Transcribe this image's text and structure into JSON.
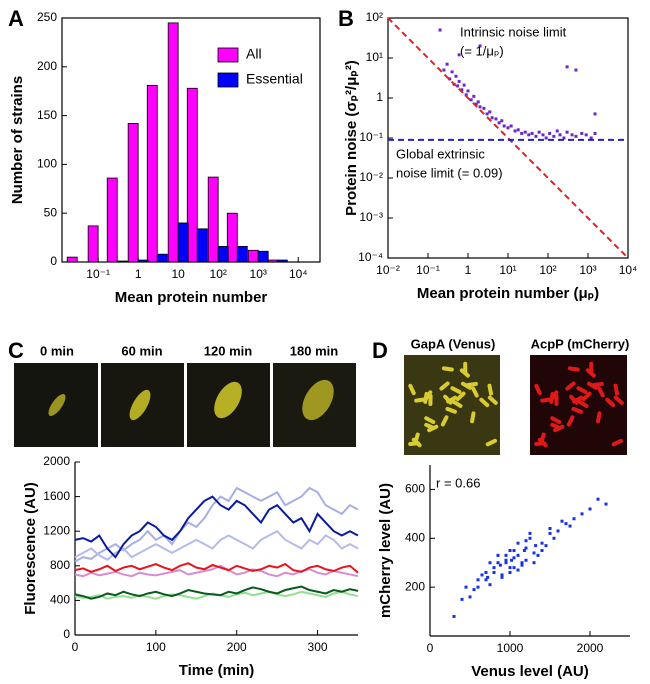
{
  "chart_data": [
    {
      "type": "bar",
      "panel": "A",
      "xlabel": "Mean protein number",
      "ylabel": "Number of strains",
      "xlog": true,
      "xlim": [
        0.0125,
        35000
      ],
      "ylim": [
        0,
        250
      ],
      "xticks": [
        {
          "value": 0.1,
          "label": "10⁻¹"
        },
        1,
        10,
        {
          "value": 100,
          "label": "10²"
        },
        {
          "value": 1000,
          "label": "10³"
        },
        {
          "value": 10000,
          "label": "10⁴"
        }
      ],
      "yticks": [
        0,
        50,
        100,
        150,
        200,
        250
      ],
      "x": [
        0.03,
        0.1,
        0.3,
        1,
        3,
        10,
        30,
        100,
        300,
        1000,
        3000
      ],
      "series": [
        {
          "name": "All",
          "color": "#ff00ff",
          "values": [
            5,
            37,
            86,
            142,
            181,
            245,
            178,
            87,
            50,
            12,
            2
          ]
        },
        {
          "name": "Essential",
          "color": "#0000ff",
          "values": [
            0,
            0,
            1,
            2,
            8,
            40,
            34,
            16,
            16,
            11,
            2
          ]
        }
      ],
      "legend": "upper right"
    },
    {
      "type": "scatter",
      "panel": "B",
      "xlabel": "Mean protein number (μₚ)",
      "ylabel": "Protein noise (σₚ²/μₚ²)",
      "xlog": true,
      "ylog": true,
      "xlim": [
        0.01,
        10000
      ],
      "ylim": [
        0.0001,
        100
      ],
      "xticks": [
        {
          "value": 0.01,
          "label": "10⁻²"
        },
        {
          "value": 0.1,
          "label": "10⁻¹"
        },
        1,
        {
          "value": 10,
          "label": "10¹"
        },
        {
          "value": 100,
          "label": "10²"
        },
        {
          "value": 1000,
          "label": "10³"
        },
        {
          "value": 10000,
          "label": "10⁴"
        }
      ],
      "yticks": [
        {
          "value": 0.0001,
          "label": "10⁻⁴"
        },
        {
          "value": 0.001,
          "label": "10⁻³"
        },
        {
          "value": 0.01,
          "label": "10⁻²"
        },
        {
          "value": 0.1,
          "label": "10⁻¹"
        },
        1,
        {
          "value": 10,
          "label": "10¹"
        },
        {
          "value": 100,
          "label": "10²"
        }
      ],
      "series": [
        {
          "color": "#6a28c8",
          "x": [
            0.25,
            0.3,
            0.35,
            0.4,
            0.45,
            0.5,
            0.55,
            0.6,
            0.7,
            0.8,
            0.9,
            1,
            1.2,
            1.4,
            1.6,
            1.8,
            2,
            2.5,
            3,
            3.5,
            4,
            5,
            6,
            7,
            8,
            10,
            12,
            15,
            18,
            22,
            27,
            33,
            40,
            50,
            60,
            75,
            90,
            110,
            140,
            170,
            200,
            250,
            300,
            400,
            500,
            700,
            900,
            1200,
            1500,
            0.2,
            0.6,
            2,
            300,
            500,
            1500
          ],
          "values": [
            5,
            7,
            3,
            4.5,
            2.2,
            3.5,
            2,
            2.6,
            1.6,
            2.1,
            1.2,
            1.5,
            0.9,
            1.1,
            0.7,
            0.8,
            0.6,
            0.55,
            0.4,
            0.45,
            0.32,
            0.3,
            0.24,
            0.27,
            0.2,
            0.18,
            0.2,
            0.15,
            0.16,
            0.13,
            0.14,
            0.12,
            0.13,
            0.11,
            0.14,
            0.12,
            0.1,
            0.13,
            0.11,
            0.15,
            0.12,
            0.1,
            0.14,
            0.12,
            0.11,
            0.13,
            0.12,
            0.1,
            0.13,
            50,
            12,
            20,
            6,
            5,
            0.4
          ]
        },
        {
          "color": "#e82020",
          "line": "dashed",
          "x": [
            0.01,
            10000
          ],
          "values": [
            100,
            0.0001
          ]
        },
        {
          "color": "#2020d0",
          "line": "dashed",
          "x": [
            0.01,
            10000
          ],
          "values": [
            0.09,
            0.09
          ]
        }
      ],
      "annotations": [
        {
          "text": "Intrinsic noise limit",
          "color": "#e82020"
        },
        {
          "text": "(= 1/μₚ)",
          "color": "#e82020"
        },
        {
          "text": "Global extrinsic",
          "color": "#2020d0"
        },
        {
          "text": "noise limit (= 0.09)",
          "color": "#2020d0"
        }
      ]
    },
    {
      "type": "line",
      "panel": "C",
      "xlabel": "Time (min)",
      "ylabel": "Fluorescence (AU)",
      "image_labels": [
        "0 min",
        "60 min",
        "120 min",
        "180 min"
      ],
      "xlim": [
        0,
        350
      ],
      "ylim": [
        0,
        2000
      ],
      "xticks": [
        0,
        100,
        200,
        300
      ],
      "yticks": [
        0,
        400,
        800,
        1200,
        1600,
        2000
      ],
      "x": [
        0,
        10,
        20,
        30,
        40,
        50,
        60,
        70,
        80,
        90,
        100,
        110,
        120,
        130,
        140,
        150,
        160,
        170,
        180,
        190,
        200,
        210,
        220,
        230,
        240,
        250,
        260,
        270,
        280,
        290,
        300,
        310,
        320,
        330,
        340,
        350
      ],
      "series": [
        {
          "color": "#a6aee6",
          "values": [
            850,
            900,
            880,
            950,
            1000,
            1050,
            980,
            1050,
            1100,
            1200,
            1100,
            1150,
            1050,
            1200,
            1300,
            1250,
            1350,
            1500,
            1600,
            1550,
            1700,
            1650,
            1600,
            1550,
            1600,
            1650,
            1500,
            1550,
            1600,
            1700,
            1650,
            1500,
            1450,
            1400,
            1500,
            1450
          ]
        },
        {
          "color": "#b4bbea",
          "values": [
            900,
            950,
            1000,
            920,
            870,
            950,
            1000,
            900,
            950,
            1000,
            1050,
            1000,
            950,
            1000,
            1050,
            1100,
            1050,
            1000,
            1100,
            1150,
            1100,
            1050,
            1000,
            1100,
            1150,
            1200,
            1100,
            1050,
            1000,
            1100,
            1050,
            1150,
            1100,
            1000,
            1050,
            1000
          ]
        },
        {
          "color": "#d78cd2",
          "values": [
            700,
            680,
            720,
            690,
            710,
            730,
            700,
            680,
            720,
            700,
            690,
            710,
            730,
            750,
            700,
            720,
            740,
            760,
            800,
            750,
            700,
            720,
            760,
            740,
            700,
            680,
            720,
            700,
            740,
            760,
            720,
            700,
            740,
            720,
            700,
            680
          ]
        },
        {
          "color": "#90e090",
          "values": [
            450,
            430,
            440,
            460,
            420,
            440,
            450,
            430,
            460,
            440,
            420,
            450,
            470,
            460,
            440,
            420,
            450,
            480,
            460,
            440,
            470,
            490,
            460,
            480,
            500,
            470,
            450,
            470,
            500,
            480,
            460,
            440,
            480,
            500,
            470,
            450
          ]
        },
        {
          "color": "#0a1aa0",
          "values": [
            1100,
            1120,
            1080,
            1150,
            1000,
            900,
            1050,
            1150,
            1200,
            1300,
            1250,
            1150,
            1100,
            1200,
            1350,
            1450,
            1550,
            1600,
            1500,
            1450,
            1550,
            1500,
            1400,
            1300,
            1450,
            1500,
            1400,
            1300,
            1350,
            1200,
            1400,
            1300,
            1200,
            1150,
            1200,
            1150
          ]
        },
        {
          "color": "#e8141e",
          "values": [
            750,
            770,
            730,
            760,
            800,
            740,
            780,
            800,
            760,
            790,
            820,
            780,
            750,
            800,
            830,
            780,
            760,
            810,
            780,
            750,
            800,
            770,
            740,
            760,
            800,
            780,
            820,
            750,
            730,
            780,
            800,
            760,
            740,
            780,
            800,
            720
          ]
        },
        {
          "color": "#0a5a1e",
          "values": [
            470,
            450,
            420,
            440,
            480,
            460,
            500,
            470,
            450,
            480,
            500,
            470,
            450,
            480,
            520,
            500,
            480,
            470,
            460,
            500,
            480,
            520,
            550,
            530,
            500,
            480,
            520,
            540,
            560,
            520,
            500,
            480,
            520,
            500,
            530,
            510
          ]
        }
      ]
    },
    {
      "type": "scatter",
      "panel": "D",
      "xlabel": "Venus level (AU)",
      "ylabel": "mCherry level (AU)",
      "image_labels": [
        "GapA (Venus)",
        "AcpP (mCherry)"
      ],
      "xlim": [
        0,
        2500
      ],
      "ylim": [
        0,
        700
      ],
      "xticks": [
        0,
        1000,
        2000
      ],
      "yticks": [
        200,
        400,
        600
      ],
      "series": [
        {
          "color": "#1432e6",
          "x": [
            800,
            950,
            1100,
            700,
            1200,
            1000,
            850,
            1300,
            600,
            1400,
            900,
            1050,
            1150,
            750,
            1250,
            1500,
            650,
            1600,
            950,
            1100,
            500,
            1700,
            1000,
            1350,
            800,
            1450,
            1200,
            550,
            1800,
            900,
            1050,
            1250,
            700,
            1550,
            1900,
            400,
            1150,
            1000,
            850,
            2000,
            1300,
            600,
            1650,
            950,
            2200,
            300,
            1100,
            750,
            1400,
            1750,
            1200,
            450,
            1050,
            2100,
            1500,
            880,
            1020,
            1180,
            720,
            1320
          ],
          "values": [
            260,
            300,
            330,
            230,
            360,
            280,
            300,
            340,
            200,
            380,
            250,
            320,
            290,
            210,
            400,
            420,
            250,
            430,
            310,
            270,
            160,
            460,
            350,
            330,
            280,
            370,
            310,
            190,
            480,
            240,
            350,
            420,
            260,
            400,
            500,
            150,
            300,
            260,
            330,
            520,
            300,
            230,
            470,
            330,
            540,
            80,
            380,
            300,
            350,
            450,
            390,
            200,
            280,
            560,
            440,
            290,
            310,
            350,
            240,
            370
          ]
        }
      ],
      "annotations": [
        {
          "text": "r = 0.66",
          "color": "#000000"
        }
      ]
    }
  ]
}
